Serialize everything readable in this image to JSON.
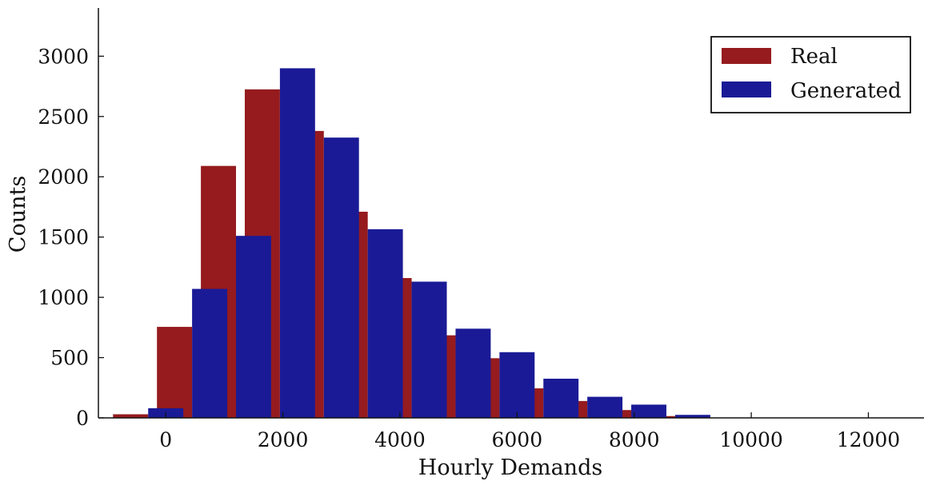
{
  "chart_data": {
    "type": "bar",
    "title": "",
    "xlabel": "Hourly Demands",
    "ylabel": "Counts",
    "x_range": [
      -1150,
      12950
    ],
    "ylim": [
      0,
      3400
    ],
    "xticks": [
      0,
      2000,
      4000,
      6000,
      8000,
      10000,
      12000
    ],
    "yticks": [
      0,
      500,
      1000,
      1500,
      2000,
      2500,
      3000
    ],
    "grid": false,
    "legend_position": "top-right",
    "bin_width": 600,
    "categories": [
      -300,
      450,
      1200,
      1950,
      2700,
      3450,
      4200,
      4950,
      5700,
      6450,
      7200,
      7950,
      8700,
      9450,
      10200
    ],
    "series": [
      {
        "name": "Real",
        "color": "#951b1e",
        "values": [
          30,
          755,
          2090,
          2725,
          2380,
          1710,
          1160,
          685,
          495,
          245,
          140,
          65,
          15,
          0,
          0
        ],
        "x_offset": -300
      },
      {
        "name": "Generated",
        "color": "#1a1a96",
        "values": [
          80,
          1070,
          1510,
          2900,
          2325,
          1565,
          1130,
          740,
          545,
          325,
          175,
          110,
          25,
          0,
          0
        ],
        "x_offset": 300
      }
    ]
  }
}
